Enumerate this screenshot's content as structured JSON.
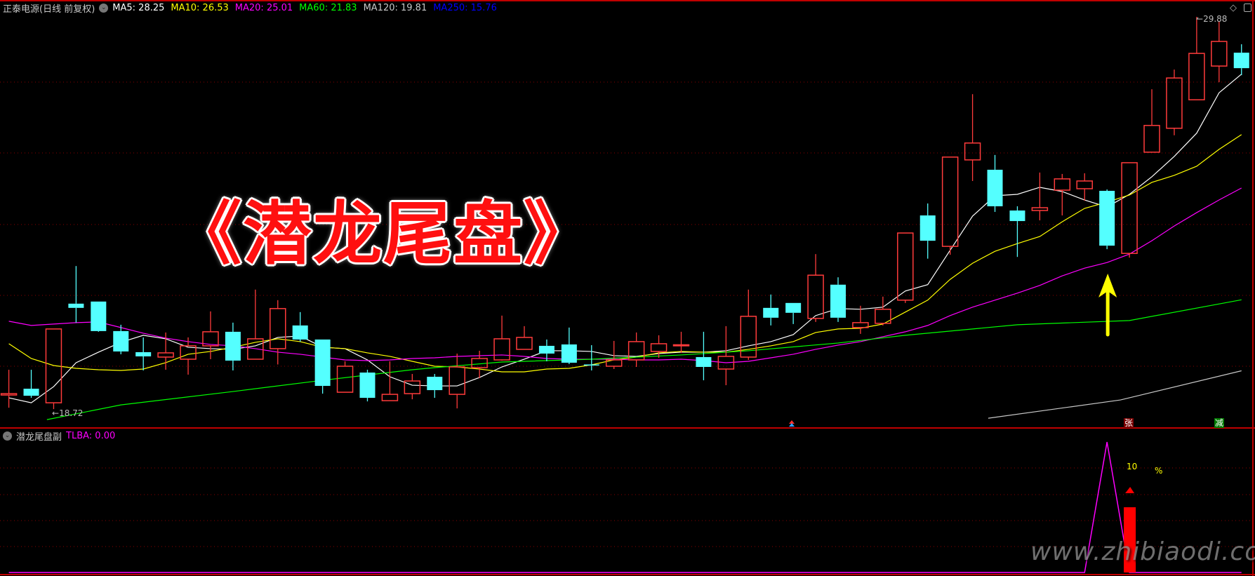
{
  "header": {
    "stock_name": "正泰电源(日线 前复权)",
    "dropdown_icon": "chevron-down-icon",
    "ma": [
      {
        "label": "MA5: 28.25",
        "color": "#ffffff"
      },
      {
        "label": "MA10: 26.53",
        "color": "#ffff00"
      },
      {
        "label": "MA20: 25.01",
        "color": "#ff00ff"
      },
      {
        "label": "MA60: 21.83",
        "color": "#00ff00"
      },
      {
        "label": "MA120: 19.81",
        "color": "#c8c8c8"
      },
      {
        "label": "MA250: 15.76",
        "color": "#0000ff"
      }
    ],
    "right_icons": [
      "diamond-icon",
      "panel-toggle-icon"
    ]
  },
  "overlay_title": "《潜龙尾盘》",
  "sub_panel": {
    "name": "潜龙尾盘副",
    "value_label": "TLBA: 0.00",
    "value_color": "#ff00ff",
    "text_10": "10",
    "text_percent": "%"
  },
  "badges": {
    "zhang": "张",
    "jian": "减"
  },
  "watermark": "www.zhibiaodi.com",
  "colors": {
    "up": "#ff3b3b",
    "down": "#54ffff",
    "grid": "#8b0000",
    "border": "#c00000",
    "arrow": "#ffff00"
  },
  "chart_data": {
    "type": "candlestick",
    "price_labels": {
      "high": "29.88",
      "low": "18.72"
    },
    "ylim": [
      18.0,
      30.05
    ],
    "ohlc": [
      [
        19.12,
        19.84,
        18.76,
        19.16
      ],
      [
        19.3,
        19.84,
        19.04,
        19.1
      ],
      [
        18.9,
        21.0,
        18.72,
        21.0
      ],
      [
        21.72,
        22.79,
        21.18,
        21.6
      ],
      [
        21.78,
        21.78,
        20.92,
        20.94
      ],
      [
        20.94,
        21.12,
        20.28,
        20.36
      ],
      [
        20.34,
        20.76,
        19.82,
        20.22
      ],
      [
        20.2,
        20.9,
        19.84,
        20.32
      ],
      [
        20.14,
        20.76,
        19.7,
        20.52
      ],
      [
        20.52,
        21.5,
        20.14,
        20.92
      ],
      [
        20.92,
        21.18,
        19.82,
        20.1
      ],
      [
        20.14,
        22.12,
        20.14,
        20.72
      ],
      [
        20.44,
        21.82,
        19.99,
        21.58
      ],
      [
        21.1,
        21.48,
        20.64,
        20.7
      ],
      [
        20.7,
        20.7,
        19.16,
        19.38
      ],
      [
        19.2,
        20.08,
        19.2,
        19.94
      ],
      [
        19.76,
        19.84,
        18.94,
        19.04
      ],
      [
        18.96,
        20.08,
        18.96,
        19.14
      ],
      [
        19.16,
        19.72,
        19.0,
        19.52
      ],
      [
        19.64,
        19.72,
        19.04,
        19.26
      ],
      [
        19.14,
        20.3,
        18.74,
        19.92
      ],
      [
        19.9,
        20.38,
        19.6,
        20.16
      ],
      [
        20.12,
        21.38,
        20.1,
        20.72
      ],
      [
        20.42,
        21.08,
        20.42,
        20.76
      ],
      [
        20.52,
        20.7,
        20.08,
        20.3
      ],
      [
        20.56,
        21.04,
        20.0,
        20.04
      ],
      [
        19.99,
        20.54,
        19.82,
        19.98
      ],
      [
        19.94,
        20.66,
        19.86,
        20.12
      ],
      [
        20.12,
        20.9,
        19.92,
        20.64
      ],
      [
        20.36,
        20.82,
        20.18,
        20.58
      ],
      [
        20.53,
        20.92,
        20.32,
        20.55
      ],
      [
        20.2,
        20.92,
        19.54,
        19.92
      ],
      [
        19.86,
        21.08,
        19.4,
        20.22
      ],
      [
        20.2,
        22.12,
        20.12,
        21.36
      ],
      [
        21.6,
        21.98,
        21.1,
        21.32
      ],
      [
        21.74,
        21.74,
        21.14,
        21.46
      ],
      [
        21.3,
        23.13,
        21.2,
        22.53
      ],
      [
        22.26,
        22.47,
        21.2,
        21.32
      ],
      [
        21.04,
        21.66,
        20.86,
        21.18
      ],
      [
        21.16,
        21.92,
        21.1,
        21.56
      ],
      [
        21.82,
        23.73,
        21.74,
        23.73
      ],
      [
        24.23,
        24.57,
        23.0,
        23.51
      ],
      [
        23.35,
        25.89,
        23.11,
        25.89
      ],
      [
        25.81,
        27.68,
        25.21,
        26.29
      ],
      [
        25.53,
        25.95,
        24.33,
        24.49
      ],
      [
        24.37,
        24.49,
        23.05,
        24.07
      ],
      [
        24.37,
        25.45,
        24.09,
        24.45
      ],
      [
        24.95,
        25.41,
        24.23,
        25.27
      ],
      [
        24.99,
        25.43,
        24.65,
        25.21
      ],
      [
        24.93,
        24.97,
        23.27,
        23.37
      ],
      [
        23.15,
        25.73,
        23.03,
        25.73
      ],
      [
        26.03,
        27.82,
        26.03,
        26.79
      ],
      [
        26.71,
        28.38,
        26.51,
        28.14
      ],
      [
        27.52,
        29.88,
        27.52,
        28.84
      ],
      [
        28.48,
        29.74,
        28.02,
        29.18
      ],
      [
        28.86,
        29.1,
        28.22,
        28.42
      ]
    ],
    "ma_series": [
      {
        "name": "MA5",
        "color": "#ffffff",
        "values": [
          19.04,
          18.9,
          19.36,
          20.04,
          20.34,
          20.62,
          20.82,
          20.72,
          20.48,
          20.44,
          20.42,
          20.52,
          20.76,
          20.8,
          20.48,
          20.44,
          20.12,
          19.64,
          19.4,
          19.38,
          19.38,
          19.62,
          19.92,
          20.14,
          20.38,
          20.38,
          20.36,
          20.24,
          20.22,
          20.3,
          20.34,
          20.34,
          20.38,
          20.52,
          20.64,
          20.84,
          21.38,
          21.58,
          21.56,
          21.62,
          22.08,
          22.26,
          23.24,
          24.21,
          24.79,
          24.83,
          25.03,
          24.91,
          24.67,
          24.47,
          24.83,
          25.33,
          25.91,
          26.57,
          27.72,
          28.25
        ]
      },
      {
        "name": "MA10",
        "color": "#ffff00",
        "values": [
          20.58,
          20.16,
          19.96,
          19.88,
          19.84,
          19.82,
          19.86,
          20.04,
          20.28,
          20.36,
          20.48,
          20.62,
          20.72,
          20.64,
          20.48,
          20.44,
          20.32,
          20.22,
          20.08,
          19.94,
          19.92,
          19.86,
          19.78,
          19.78,
          19.86,
          19.88,
          19.98,
          20.12,
          20.2,
          20.32,
          20.36,
          20.34,
          20.34,
          20.42,
          20.52,
          20.64,
          20.9,
          21.0,
          21.02,
          21.14,
          21.48,
          21.82,
          22.41,
          22.87,
          23.21,
          23.43,
          23.63,
          24.05,
          24.43,
          24.61,
          24.81,
          25.17,
          25.37,
          25.63,
          26.11,
          26.53
        ]
      },
      {
        "name": "MA20",
        "color": "#ff00ff",
        "values": [
          21.22,
          21.1,
          21.14,
          21.18,
          21.2,
          21.04,
          20.88,
          20.74,
          20.64,
          20.56,
          20.52,
          20.44,
          20.34,
          20.28,
          20.2,
          20.12,
          20.1,
          20.12,
          20.16,
          20.18,
          20.22,
          20.24,
          20.26,
          20.22,
          20.16,
          20.14,
          20.14,
          20.14,
          20.12,
          20.12,
          20.14,
          20.1,
          20.04,
          20.08,
          20.18,
          20.28,
          20.42,
          20.54,
          20.64,
          20.78,
          20.92,
          21.1,
          21.38,
          21.62,
          21.82,
          22.02,
          22.24,
          22.51,
          22.73,
          22.89,
          23.13,
          23.51,
          23.93,
          24.31,
          24.67,
          25.01
        ]
      },
      {
        "name": "MA60",
        "color": "#00ff00",
        "points": [
          [
            1.7,
            18.42
          ],
          [
            5,
            18.84
          ],
          [
            10,
            19.22
          ],
          [
            14,
            19.54
          ],
          [
            18,
            19.84
          ],
          [
            19,
            19.9
          ],
          [
            22,
            20.06
          ],
          [
            26,
            20.14
          ],
          [
            30,
            20.26
          ],
          [
            33,
            20.38
          ],
          [
            37,
            20.6
          ],
          [
            40,
            20.82
          ],
          [
            45,
            21.12
          ],
          [
            50,
            21.24
          ],
          [
            55,
            21.83
          ]
        ]
      },
      {
        "name": "MA120",
        "color": "#c8c8c8",
        "points": [
          [
            43.7,
            18.46
          ],
          [
            49.6,
            18.98
          ],
          [
            55,
            19.81
          ]
        ]
      }
    ],
    "tlba": {
      "name": "TLBA",
      "color": "#ff00ff",
      "ylim": [
        0,
        5
      ],
      "points": [
        [
          0,
          0
        ],
        [
          48,
          0
        ],
        [
          49,
          5
        ],
        [
          50,
          0
        ],
        [
          55,
          0
        ]
      ]
    },
    "signal_bar": {
      "index": 50,
      "value": 2.5,
      "color": "#ff0000"
    },
    "signal_arrow_index": 49
  }
}
